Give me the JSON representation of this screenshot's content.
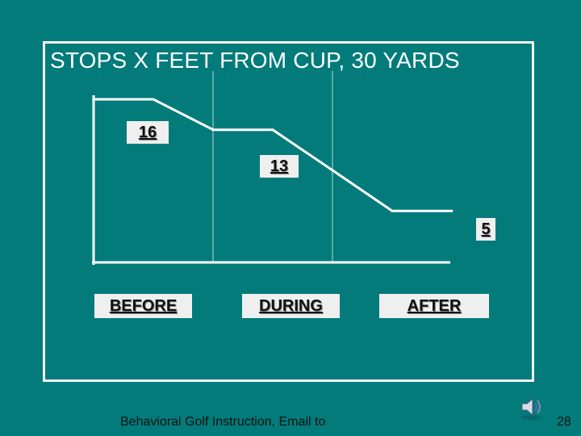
{
  "slide": {
    "footer_text": "Behavioral Golf Instruction,  Email to",
    "page_number": "28"
  },
  "colors": {
    "background": "#037b7b",
    "line": "#ffffff",
    "label_box": "#efefef"
  },
  "icons": {
    "speaker": "speaker-icon"
  },
  "chart_data": {
    "type": "line",
    "title": "STOPS X FEET FROM CUP, 30 YARDS",
    "categories": [
      "BEFORE",
      "DURING",
      "AFTER"
    ],
    "series": [
      {
        "x": [
          0.0,
          0.5,
          1.0,
          1.5,
          2.0,
          2.5,
          3.0
        ],
        "values": [
          16,
          16,
          13,
          13,
          9,
          5,
          5
        ]
      }
    ],
    "data_labels": [
      {
        "text": "16",
        "value": 16
      },
      {
        "text": "13",
        "value": 13
      },
      {
        "text": "5",
        "value": 5
      }
    ],
    "xlabel": "",
    "ylabel": "",
    "legend": "none",
    "grid": "vertical"
  }
}
